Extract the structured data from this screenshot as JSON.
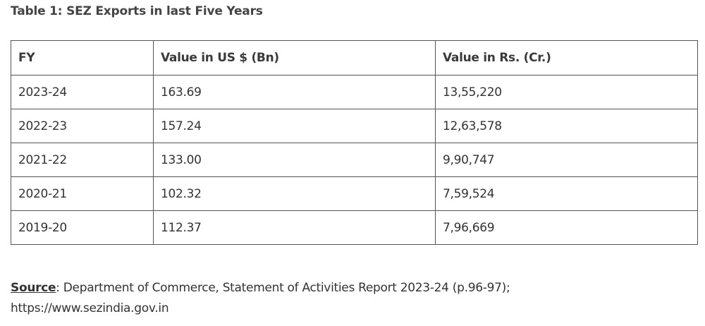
{
  "caption": "Table 1: SEZ Exports in last Five Years",
  "table": {
    "headers": [
      "FY",
      "Value in US $ (Bn)",
      "Value in Rs. (Cr.)"
    ],
    "rows": [
      [
        "2023-24",
        "163.69",
        "13,55,220"
      ],
      [
        "2022-23",
        "157.24",
        "12,63,578"
      ],
      [
        "2021-22",
        "133.00",
        "9,90,747"
      ],
      [
        "2020-21",
        "102.32",
        "7,59,524"
      ],
      [
        "2019-20",
        "112.37",
        "7,96,669"
      ]
    ]
  },
  "source": {
    "label": "Source",
    "text": ": Department of Commerce, Statement of Activities Report 2023-24 (p.96-97);",
    "url": "https://www.sezindia.gov.in"
  }
}
